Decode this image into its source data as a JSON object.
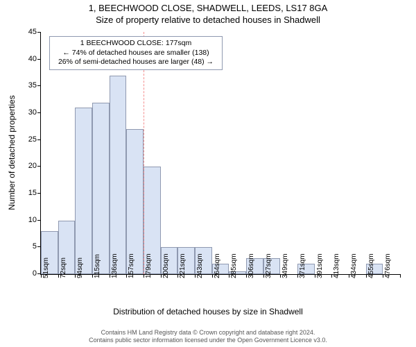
{
  "titles": {
    "line1": "1, BEECHWOOD CLOSE, SHADWELL, LEEDS, LS17 8GA",
    "line2": "Size of property relative to detached houses in Shadwell"
  },
  "ylabel": "Number of detached properties",
  "xlabel": "Distribution of detached houses by size in Shadwell",
  "chart": {
    "type": "histogram",
    "ymax": 45,
    "ytick_step": 5,
    "yticks": [
      0,
      5,
      10,
      15,
      20,
      25,
      30,
      35,
      40,
      45
    ],
    "bar_fill": "#d9e3f4",
    "bar_stroke": "#8f99b0",
    "bar_stroke_width": 1,
    "background": "#ffffff",
    "x_labels": [
      "51sqm",
      "72sqm",
      "94sqm",
      "115sqm",
      "136sqm",
      "157sqm",
      "179sqm",
      "200sqm",
      "221sqm",
      "243sqm",
      "264sqm",
      "285sqm",
      "306sqm",
      "327sqm",
      "349sqm",
      "371sqm",
      "391sqm",
      "413sqm",
      "434sqm",
      "455sqm",
      "476sqm"
    ],
    "values": [
      8,
      10,
      31,
      32,
      37,
      27,
      20,
      5,
      5,
      5,
      2,
      0.5,
      3,
      3,
      0,
      2,
      0,
      0,
      0,
      2,
      0
    ]
  },
  "reference_line": {
    "bin_index": 6,
    "color": "#f58e8e"
  },
  "annotation": {
    "line1": "1 BEECHWOOD CLOSE: 177sqm",
    "line2": "← 74% of detached houses are smaller (138)",
    "line3": "26% of semi-detached houses are larger (48) →"
  },
  "attribution": {
    "line1": "Contains HM Land Registry data © Crown copyright and database right 2024.",
    "line2": "Contains public sector information licensed under the Open Government Licence v3.0."
  }
}
